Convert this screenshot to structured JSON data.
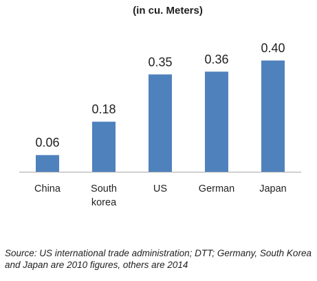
{
  "chart_data": {
    "type": "bar",
    "title": "",
    "subtitle": "(in cu. Meters)",
    "xlabel": "",
    "ylabel": "",
    "categories": [
      "China",
      "South korea",
      "US",
      "German",
      "Japan"
    ],
    "category_lines": [
      [
        "China"
      ],
      [
        "South",
        "korea"
      ],
      [
        "US"
      ],
      [
        "German"
      ],
      [
        "Japan"
      ]
    ],
    "values": [
      0.06,
      0.18,
      0.35,
      0.36,
      0.4
    ],
    "value_labels": [
      "0.06",
      "0.18",
      "0.35",
      "0.36",
      "0.40"
    ],
    "ylim": [
      0,
      0.42
    ],
    "grid": false,
    "legend": "none",
    "bar_color": "#4f81bd",
    "axis_color": "#a6a6a6"
  },
  "source_note": "Source: US international trade administration; DTT;   Germany, South Korea and Japan are 2010 figures, others are 2014"
}
